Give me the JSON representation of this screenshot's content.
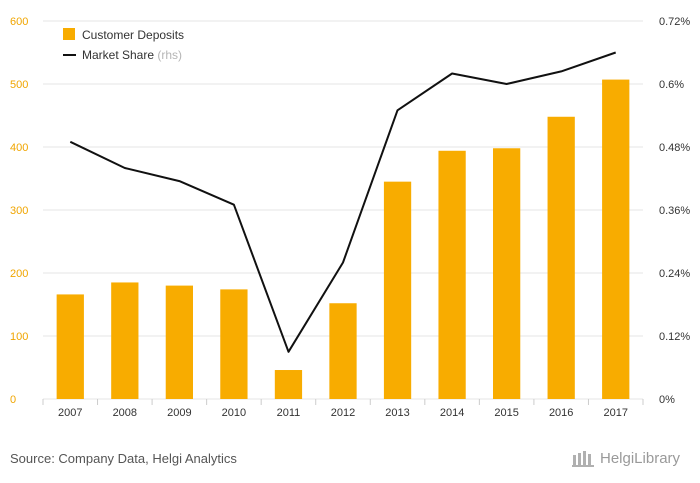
{
  "chart_data": {
    "type": "bar+line",
    "categories": [
      "2007",
      "2008",
      "2009",
      "2010",
      "2011",
      "2012",
      "2013",
      "2014",
      "2015",
      "2016",
      "2017"
    ],
    "series": [
      {
        "name": "Customer Deposits",
        "type": "bar",
        "axis": "left",
        "color": "#f8ac00",
        "values": [
          166,
          185,
          180,
          174,
          46,
          152,
          345,
          394,
          398,
          448,
          507
        ]
      },
      {
        "name": "Market Share",
        "name_suffix": "(rhs)",
        "type": "line",
        "axis": "right",
        "color": "#111111",
        "values": [
          0.49,
          0.44,
          0.415,
          0.37,
          0.09,
          0.26,
          0.55,
          0.62,
          0.6,
          0.624,
          0.66
        ]
      }
    ],
    "y_left": {
      "min": 0,
      "max": 600,
      "ticks": [
        0,
        100,
        200,
        300,
        400,
        500,
        600
      ],
      "tick_labels": [
        "0",
        "100",
        "200",
        "300",
        "400",
        "500",
        "600"
      ]
    },
    "y_right": {
      "min": 0,
      "max": 0.72,
      "ticks": [
        0,
        0.12,
        0.24,
        0.36,
        0.48,
        0.6,
        0.72
      ],
      "tick_labels": [
        "0%",
        "0.12%",
        "0.24%",
        "0.36%",
        "0.48%",
        "0.6%",
        "0.72%"
      ]
    },
    "grid": "horizontal",
    "legend_position": "top-left",
    "colors": {
      "gridline": "#e6e6e6",
      "axis_tick_left": "#f0a500"
    }
  },
  "footer": {
    "source": "Source: Company Data, Helgi Analytics",
    "brand": "HelgiLibrary"
  },
  "icons": {
    "brand": "library-building-icon"
  }
}
